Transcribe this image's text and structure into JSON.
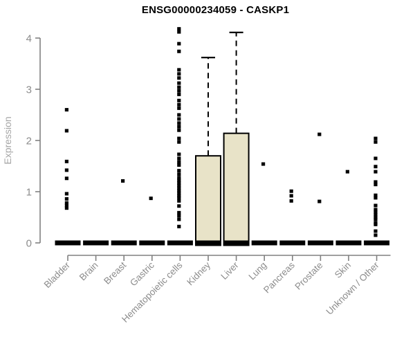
{
  "chart_data": {
    "type": "boxplot",
    "title": "ENSG00000234059 - CASKP1",
    "ylabel": "Expression",
    "xlabel": "",
    "ylim": [
      0,
      4
    ],
    "yticks": [
      0,
      1,
      2,
      3,
      4
    ],
    "grid": false,
    "legend": false,
    "colors": {
      "box_fill": "#E8E3C8",
      "box_stroke": "#000000",
      "median": "#000000",
      "whisker": "#000000",
      "outlier": "#000000",
      "axis": "#808080",
      "tick_labels": "#8C8C8C",
      "ylabel_color": "#A6A6A6",
      "title_color": "#000000",
      "background": "#FFFFFF"
    },
    "categories": [
      "Bladder",
      "Brain",
      "Breast",
      "Gastric",
      "Hematopoietic cells",
      "Kidney",
      "Liver",
      "Lung",
      "Pancreas",
      "Prostate",
      "Skin",
      "Unknown / Other"
    ],
    "boxes": [
      {
        "category": "Bladder",
        "q1": 0,
        "median": 0,
        "q3": 0,
        "whisker_low": 0,
        "whisker_high": 0,
        "outliers": [
          2.6,
          2.19,
          1.59,
          1.42,
          1.26,
          0.96,
          0.86,
          0.78,
          0.73,
          0.68
        ]
      },
      {
        "category": "Brain",
        "q1": 0,
        "median": 0,
        "q3": 0,
        "whisker_low": 0,
        "whisker_high": 0,
        "outliers": []
      },
      {
        "category": "Breast",
        "q1": 0,
        "median": 0,
        "q3": 0,
        "whisker_low": 0,
        "whisker_high": 0,
        "outliers": [
          1.21
        ]
      },
      {
        "category": "Gastric",
        "q1": 0,
        "median": 0,
        "q3": 0,
        "whisker_low": 0,
        "whisker_high": 0,
        "outliers": [
          0.87
        ]
      },
      {
        "category": "Hematopoietic cells",
        "q1": 0,
        "median": 0,
        "q3": 0,
        "whisker_low": 0,
        "whisker_high": 0,
        "outliers": [
          4.18,
          4.12,
          3.89,
          3.74,
          3.38,
          3.3,
          3.22,
          3.12,
          3.04,
          2.97,
          2.9,
          2.78,
          2.7,
          2.63,
          2.5,
          2.42,
          2.34,
          2.27,
          2.2,
          2.04,
          1.97,
          1.73,
          1.65,
          1.58,
          1.52,
          1.41,
          1.34,
          1.27,
          1.22,
          1.17,
          1.12,
          1.07,
          1.02,
          0.97,
          0.92,
          0.88,
          0.82,
          0.72,
          0.59,
          0.53,
          0.46,
          0.32
        ]
      },
      {
        "category": "Kidney",
        "q1": 0,
        "median": 0,
        "q3": 1.7,
        "whisker_low": 0,
        "whisker_high": 3.62,
        "outliers": []
      },
      {
        "category": "Liver",
        "q1": 0,
        "median": 0,
        "q3": 2.14,
        "whisker_low": 0,
        "whisker_high": 4.11,
        "outliers": []
      },
      {
        "category": "Lung",
        "q1": 0,
        "median": 0,
        "q3": 0,
        "whisker_low": 0,
        "whisker_high": 0,
        "outliers": [
          1.54
        ]
      },
      {
        "category": "Pancreas",
        "q1": 0,
        "median": 0,
        "q3": 0,
        "whisker_low": 0,
        "whisker_high": 0,
        "outliers": [
          1.01,
          0.92,
          0.82
        ]
      },
      {
        "category": "Prostate",
        "q1": 0,
        "median": 0,
        "q3": 0,
        "whisker_low": 0,
        "whisker_high": 0,
        "outliers": [
          2.12,
          0.81
        ]
      },
      {
        "category": "Skin",
        "q1": 0,
        "median": 0,
        "q3": 0,
        "whisker_low": 0,
        "whisker_high": 0,
        "outliers": [
          1.39
        ]
      },
      {
        "category": "Unknown / Other",
        "q1": 0,
        "median": 0,
        "q3": 0,
        "whisker_low": 0,
        "whisker_high": 0,
        "outliers": [
          2.04,
          1.97,
          1.65,
          1.49,
          1.39,
          1.19,
          1.14,
          0.93,
          0.88,
          0.73,
          0.65,
          0.6,
          0.55,
          0.5,
          0.46,
          0.39,
          0.36,
          0.23,
          0.15
        ]
      }
    ]
  }
}
